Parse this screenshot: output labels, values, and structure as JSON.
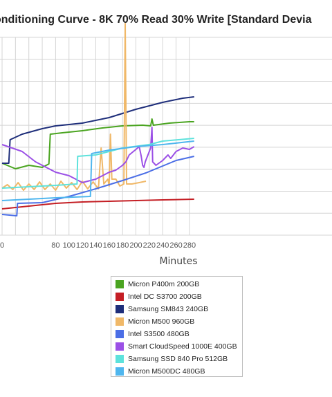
{
  "chart_data": {
    "type": "line",
    "title": "onditioning Curve - 8K 70% Read 30% Write [Standard Devia",
    "xlabel": "Minutes",
    "ylabel": "",
    "xlim": [
      -2,
      287
    ],
    "x_ticks": [
      0,
      20,
      40,
      60,
      80,
      100,
      120,
      140,
      160,
      180,
      200,
      220,
      240,
      260,
      280
    ],
    "x_tick_labels": [
      "0",
      "",
      "",
      "",
      "80",
      "100",
      "120",
      "140",
      "160",
      "180",
      "200",
      "220",
      "240",
      "260",
      "280"
    ],
    "y_gridlines": 9,
    "grid": true,
    "legend_position": "bottom-center",
    "series": [
      {
        "name": "Micron P400m 200GB",
        "color": "#4aa420",
        "points": [
          [
            0,
            182
          ],
          [
            20,
            190
          ],
          [
            40,
            185
          ],
          [
            60,
            188
          ],
          [
            70,
            183
          ],
          [
            72,
            140
          ],
          [
            90,
            138
          ],
          [
            120,
            135
          ],
          [
            150,
            131
          ],
          [
            180,
            128
          ],
          [
            210,
            127
          ],
          [
            222,
            128
          ],
          [
            224,
            118
          ],
          [
            226,
            127
          ],
          [
            250,
            124
          ],
          [
            280,
            122
          ],
          [
            287,
            122
          ]
        ]
      },
      {
        "name": "Intel DC S3700 200GB",
        "color": "#c41e24",
        "points": [
          [
            0,
            248
          ],
          [
            40,
            244
          ],
          [
            80,
            240
          ],
          [
            120,
            238
          ],
          [
            160,
            237
          ],
          [
            200,
            236
          ],
          [
            240,
            235
          ],
          [
            287,
            234
          ]
        ]
      },
      {
        "name": "Samsung SM843 240GB",
        "color": "#1e2e7a",
        "points": [
          [
            0,
            182
          ],
          [
            10,
            182
          ],
          [
            12,
            148
          ],
          [
            30,
            140
          ],
          [
            60,
            132
          ],
          [
            80,
            128
          ],
          [
            100,
            126
          ],
          [
            120,
            124
          ],
          [
            160,
            116
          ],
          [
            200,
            104
          ],
          [
            240,
            94
          ],
          [
            270,
            88
          ],
          [
            287,
            86
          ]
        ]
      },
      {
        "name": "Micron M500 960GB",
        "color": "#f0b868",
        "points": [
          [
            0,
            218
          ],
          [
            8,
            213
          ],
          [
            16,
            220
          ],
          [
            24,
            210
          ],
          [
            32,
            221
          ],
          [
            40,
            212
          ],
          [
            48,
            220
          ],
          [
            56,
            209
          ],
          [
            64,
            220
          ],
          [
            72,
            212
          ],
          [
            80,
            221
          ],
          [
            88,
            208
          ],
          [
            96,
            218
          ],
          [
            104,
            210
          ],
          [
            112,
            220
          ],
          [
            120,
            208
          ],
          [
            128,
            219
          ],
          [
            136,
            209
          ],
          [
            144,
            219
          ],
          [
            148,
            160
          ],
          [
            152,
            212
          ],
          [
            158,
            205
          ],
          [
            160,
            215
          ],
          [
            162,
            140
          ],
          [
            164,
            205
          ],
          [
            170,
            205
          ],
          [
            176,
            215
          ],
          [
            182,
            212
          ],
          [
            184,
            -20
          ],
          [
            186,
            212
          ],
          [
            194,
            212
          ],
          [
            205,
            210
          ],
          [
            215,
            208
          ]
        ]
      },
      {
        "name": "Intel S3500 480GB",
        "color": "#4b6ee6",
        "points": [
          [
            0,
            256
          ],
          [
            22,
            258
          ],
          [
            23,
            240
          ],
          [
            60,
            239
          ],
          [
            100,
            230
          ],
          [
            140,
            219
          ],
          [
            180,
            207
          ],
          [
            215,
            196
          ],
          [
            240,
            186
          ],
          [
            260,
            178
          ],
          [
            287,
            172
          ]
        ]
      },
      {
        "name": "Smart CloudSpeed 1000E 400GB",
        "color": "#9b50e6",
        "points": [
          [
            0,
            155
          ],
          [
            30,
            165
          ],
          [
            50,
            180
          ],
          [
            80,
            195
          ],
          [
            100,
            200
          ],
          [
            120,
            210
          ],
          [
            140,
            205
          ],
          [
            160,
            195
          ],
          [
            170,
            192
          ],
          [
            180,
            185
          ],
          [
            185,
            180
          ],
          [
            190,
            170
          ],
          [
            200,
            162
          ],
          [
            205,
            158
          ],
          [
            208,
            172
          ],
          [
            210,
            185
          ],
          [
            212,
            188
          ],
          [
            214,
            180
          ],
          [
            218,
            170
          ],
          [
            222,
            160
          ],
          [
            224,
            130
          ],
          [
            225,
            180
          ],
          [
            230,
            185
          ],
          [
            240,
            178
          ],
          [
            248,
            170
          ],
          [
            252,
            175
          ],
          [
            260,
            165
          ],
          [
            270,
            160
          ],
          [
            280,
            162
          ],
          [
            287,
            158
          ]
        ]
      },
      {
        "name": "Samsung SSD 840 Pro 512GB",
        "color": "#5de2dc",
        "points": [
          [
            0,
            218
          ],
          [
            40,
            216
          ],
          [
            80,
            214
          ],
          [
            112,
            212
          ],
          [
            113,
            172
          ],
          [
            140,
            170
          ],
          [
            180,
            160
          ],
          [
            220,
            155
          ],
          [
            240,
            150
          ],
          [
            287,
            146
          ]
        ]
      },
      {
        "name": "Micron M500DC 480GB",
        "color": "#4fb6ee",
        "points": [
          [
            0,
            236
          ],
          [
            40,
            234
          ],
          [
            80,
            232
          ],
          [
            132,
            230
          ],
          [
            134,
            168
          ],
          [
            160,
            163
          ],
          [
            200,
            158
          ],
          [
            240,
            155
          ],
          [
            287,
            150
          ]
        ]
      }
    ]
  }
}
